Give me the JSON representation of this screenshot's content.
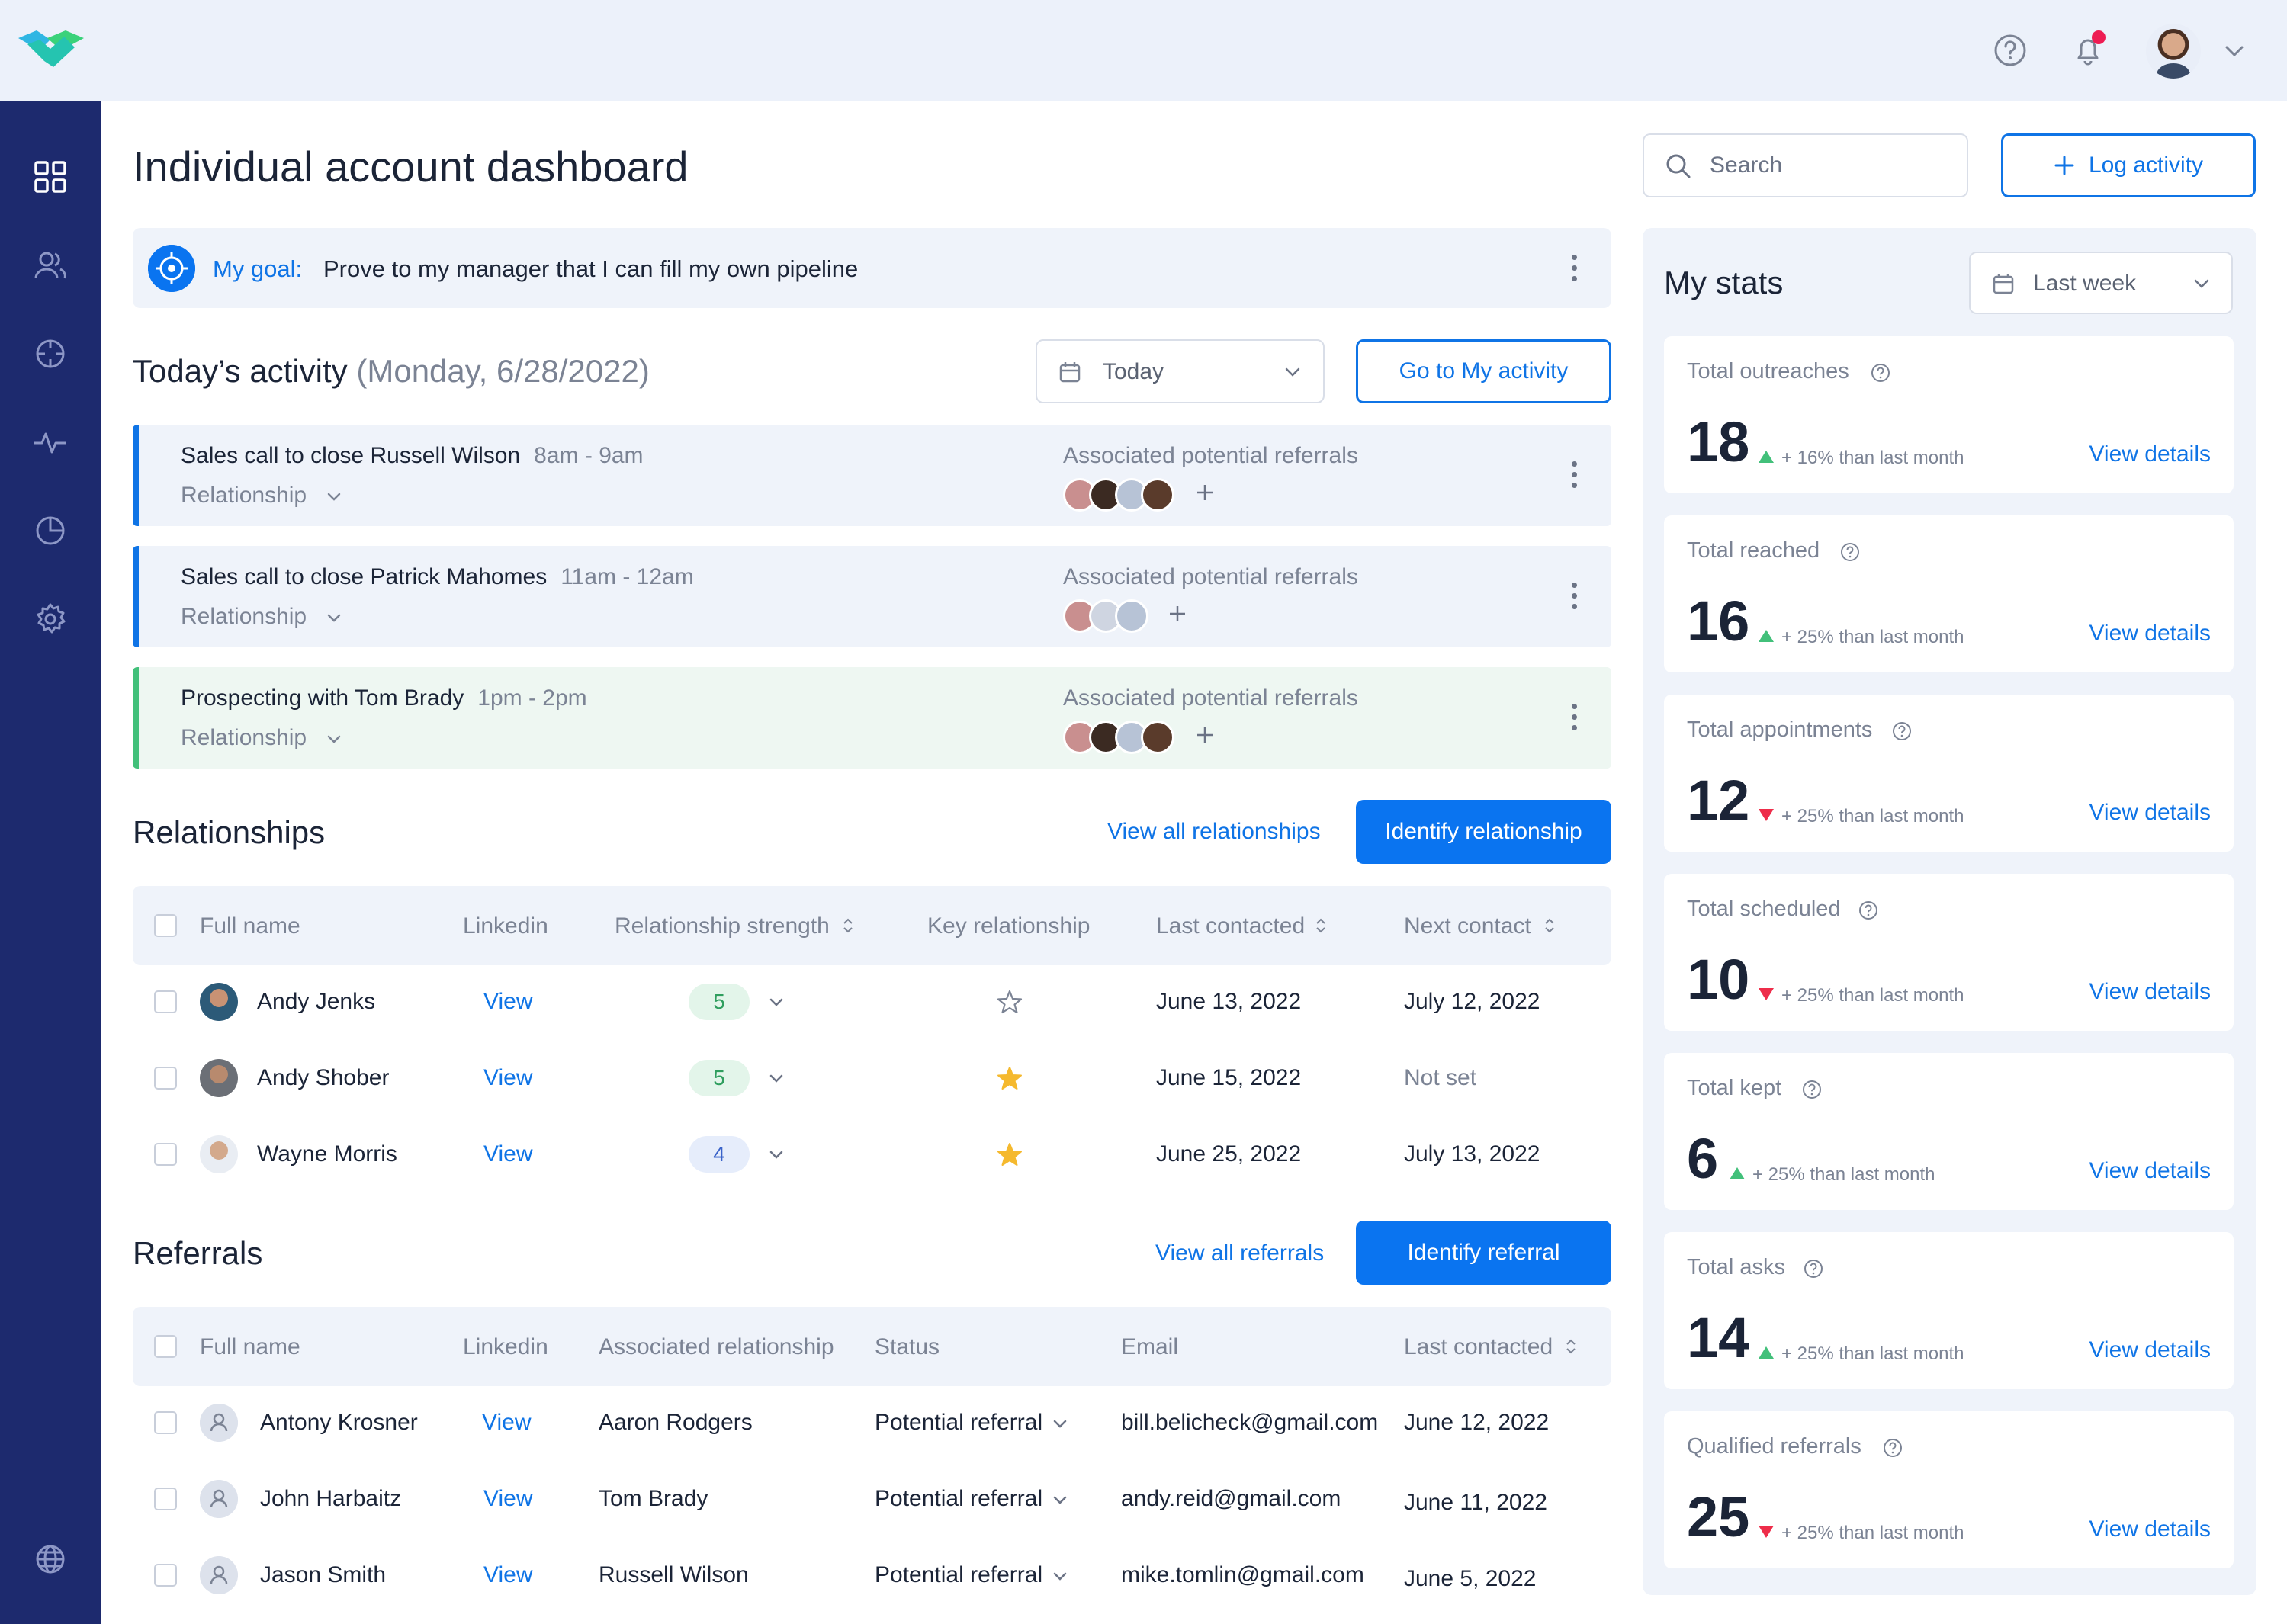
{
  "brand": {
    "logo_icon": "handshake-logo-icon",
    "accent": "#0a74f0",
    "sidebar_color": "#1d2a6e"
  },
  "topbar": {
    "help_icon": "help-circle-icon",
    "bell_icon": "bell-icon",
    "avatar_icon": "user-avatar",
    "menu_icon": "chevron-down-icon"
  },
  "sidebar": {
    "items": [
      {
        "icon": "dashboard-grid-icon"
      },
      {
        "icon": "users-icon"
      },
      {
        "icon": "crosshair-icon"
      },
      {
        "icon": "activity-pulse-icon"
      },
      {
        "icon": "pie-chart-icon"
      },
      {
        "icon": "settings-gear-icon"
      },
      {
        "icon": "globe-icon"
      }
    ]
  },
  "header": {
    "title": "Individual account dashboard",
    "search_placeholder": "Search",
    "log_activity_label": "Log activity"
  },
  "goal": {
    "label": "My goal:",
    "text": "Prove to my manager that I can fill my own pipeline"
  },
  "today": {
    "title": "Today’s activity",
    "date": "(Monday, 6/28/2022)",
    "filter_value": "Today",
    "go_button": "Go to My activity",
    "items": [
      {
        "title": "Sales call to close Russell Wilson",
        "time": "8am - 9am",
        "tag": "Relationship",
        "assoc_label": "Associated potential referrals"
      },
      {
        "title": "Sales call to close Patrick Mahomes",
        "time": "11am - 12am",
        "tag": "Relationship",
        "assoc_label": "Associated potential referrals"
      },
      {
        "title": "Prospecting with Tom Brady",
        "time": "1pm - 2pm",
        "tag": "Relationship",
        "assoc_label": "Associated potential referrals"
      }
    ]
  },
  "relationships": {
    "title": "Relationships",
    "view_all": "View all relationships",
    "identify": "Identify relationship",
    "columns": [
      "Full name",
      "Linkedin",
      "Relationship strength",
      "Key relationship",
      "Last contacted",
      "Next contact"
    ],
    "rows": [
      {
        "name": "Andy Jenks",
        "linkedin": "View",
        "strength": "5",
        "key": false,
        "last": "June 13, 2022",
        "next": "July 12, 2022"
      },
      {
        "name": "Andy Shober",
        "linkedin": "View",
        "strength": "5",
        "key": true,
        "last": "June 15, 2022",
        "next": "Not set"
      },
      {
        "name": "Wayne Morris",
        "linkedin": "View",
        "strength": "4",
        "key": true,
        "last": "June 25, 2022",
        "next": "July 13, 2022"
      }
    ]
  },
  "referrals": {
    "title": "Referrals",
    "view_all": "View all referrals",
    "identify": "Identify referral",
    "columns": [
      "Full name",
      "Linkedin",
      "Associated relationship",
      "Status",
      "Email",
      "Last contacted"
    ],
    "rows": [
      {
        "name": "Antony Krosner",
        "linkedin": "View",
        "relationship": "Aaron Rodgers",
        "status": "Potential referral",
        "email": "bill.belicheck@gmail.com",
        "last": "June 12, 2022"
      },
      {
        "name": "John Harbaitz",
        "linkedin": "View",
        "relationship": "Tom Brady",
        "status": "Potential referral",
        "email": "andy.reid@gmail.com",
        "last": "June 11, 2022"
      },
      {
        "name": "Jason Smith",
        "linkedin": "View",
        "relationship": "Russell Wilson",
        "status": "Potential referral",
        "email": "mike.tomlin@gmail.com",
        "last": "June 5, 2022"
      }
    ]
  },
  "stats": {
    "title": "My stats",
    "period": "Last week",
    "view_details": "View details",
    "cards": [
      {
        "label": "Total outreaches",
        "value": "18",
        "delta": "+ 16% than last month",
        "trend": "up"
      },
      {
        "label": "Total reached",
        "value": "16",
        "delta": "+ 25% than last month",
        "trend": "up"
      },
      {
        "label": "Total appointments",
        "value": "12",
        "delta": "+ 25% than last month",
        "trend": "down"
      },
      {
        "label": "Total scheduled",
        "value": "10",
        "delta": "+ 25% than last month",
        "trend": "down"
      },
      {
        "label": "Total kept",
        "value": "6",
        "delta": "+ 25% than last month",
        "trend": "up"
      },
      {
        "label": "Total asks",
        "value": "14",
        "delta": "+ 25% than last month",
        "trend": "up"
      },
      {
        "label": "Qualified referrals",
        "value": "25",
        "delta": "+ 25% than last month",
        "trend": "down"
      }
    ]
  }
}
